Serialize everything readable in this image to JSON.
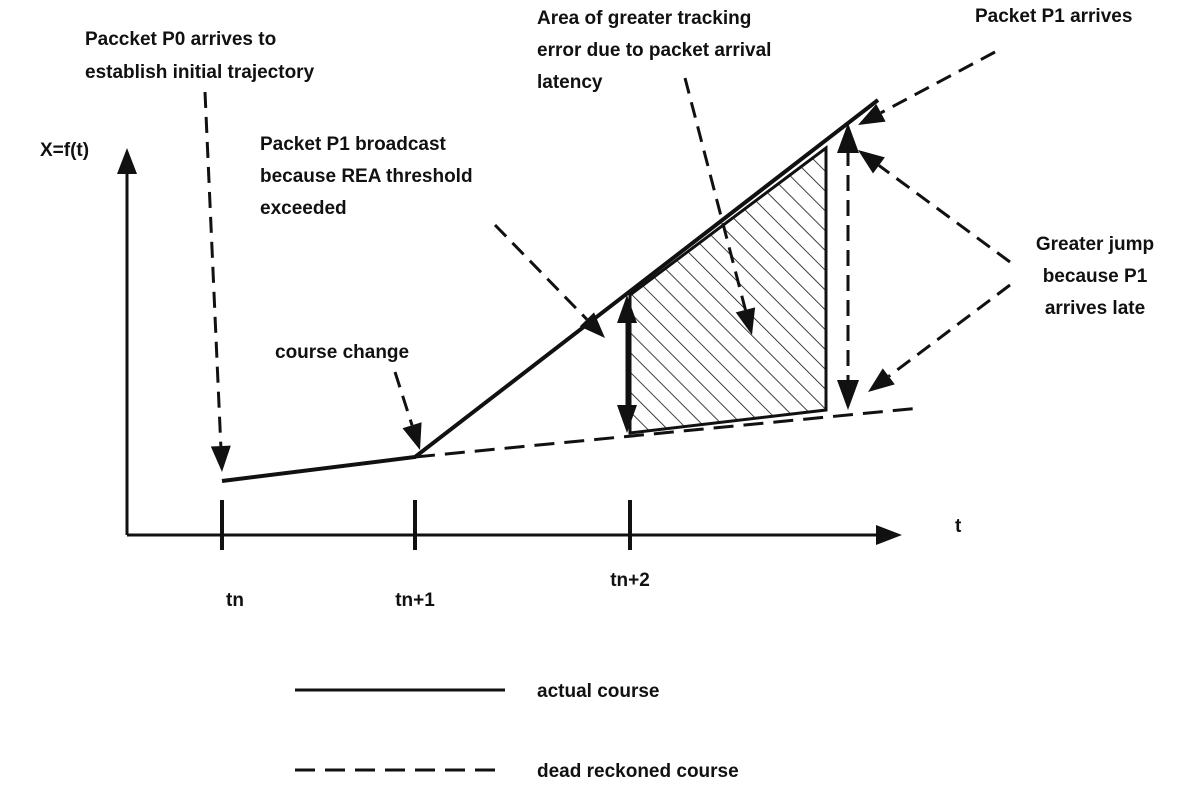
{
  "annotations": [
    {
      "lines": [
        "Paccket P0 arrives to",
        "establish initial trajectory"
      ]
    },
    {
      "lines": [
        "Area of greater tracking",
        "error due to packet arrival",
        "latency"
      ]
    },
    {
      "lines": [
        "Packet P1 arrives"
      ]
    },
    {
      "lines": [
        "Packet P1 broadcast",
        "because REA threshold",
        "exceeded"
      ]
    },
    {
      "lines": [
        "course change"
      ]
    },
    {
      "lines": [
        "Greater jump",
        "because P1",
        "arrives late"
      ]
    }
  ],
  "axes": {
    "y_label": "X=f(t)",
    "x_label": "t",
    "ticks": [
      "tn",
      "tn+1",
      "tn+2"
    ]
  },
  "legend": [
    "actual course",
    "dead reckoned course"
  ]
}
